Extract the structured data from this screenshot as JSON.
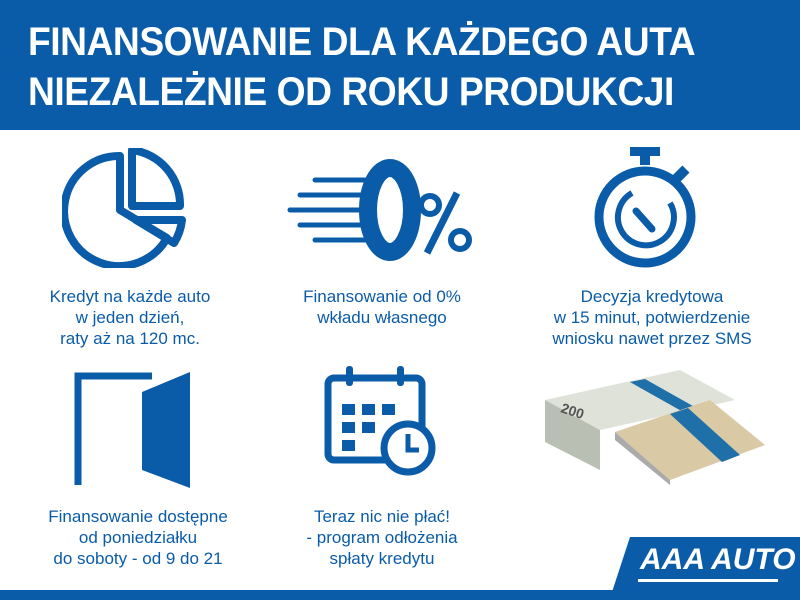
{
  "header": {
    "line1": "FINANSOWANIE DLA KAŻDEGO AUTA",
    "line2": "NIEZALEŻNIE OD ROKU PRODUKCJI"
  },
  "features": [
    {
      "icon": "pie-chart-icon",
      "lines": [
        "Kredyt na każde auto",
        "w jeden dzień,",
        "raty aż na 120 mc."
      ]
    },
    {
      "icon": "zero-percent-icon",
      "lines": [
        "Finansowanie od 0%",
        "wkładu własnego"
      ]
    },
    {
      "icon": "stopwatch-icon",
      "lines": [
        "Decyzja kredytowa",
        "w 15 minut, potwierdzenie",
        "wniosku nawet przez SMS"
      ]
    },
    {
      "icon": "open-door-icon",
      "lines": [
        "Finansowanie dostępne",
        "od poniedziałku",
        "do soboty - od 9 do 21"
      ]
    },
    {
      "icon": "calendar-clock-icon",
      "lines": [
        "Teraz nic nie płać!",
        "- program odłożenia",
        "spłaty kredytu"
      ]
    }
  ],
  "image": {
    "icon": "banknote-stacks-image",
    "banknote_value": "200"
  },
  "logo": {
    "text": "AAA AUTO"
  },
  "colors": {
    "brand_blue": "#0b5ca8"
  }
}
